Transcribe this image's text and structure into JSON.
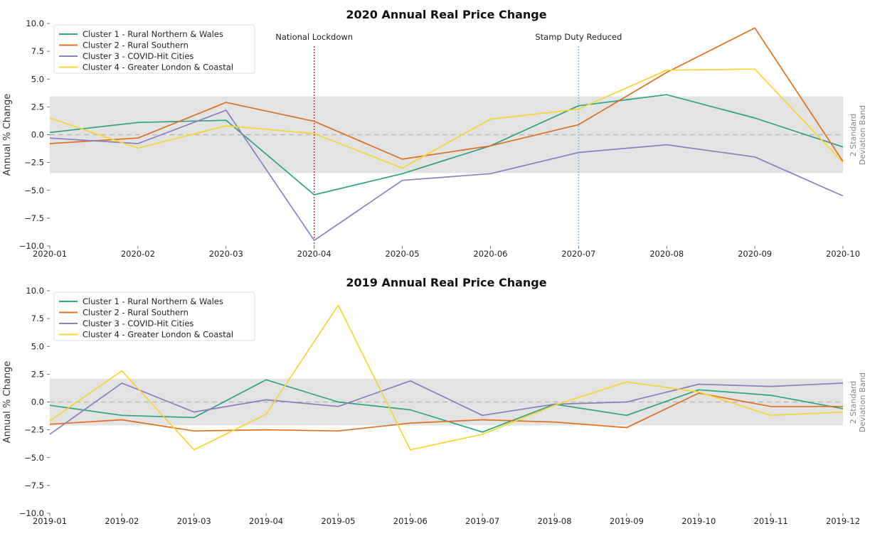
{
  "chart_data": [
    {
      "type": "line",
      "title": "2020 Annual Real Price Change",
      "ylabel": "Annual % Change",
      "band_label_line1": "2 Standard",
      "band_label_line2": "Deviation Band",
      "x": [
        "2020-01",
        "2020-02",
        "2020-03",
        "2020-04",
        "2020-05",
        "2020-06",
        "2020-07",
        "2020-08",
        "2020-09",
        "2020-10"
      ],
      "ylim": [
        -10,
        10
      ],
      "yticks": [
        "−10.0",
        "−7.5",
        "−5.0",
        "−2.5",
        "0.0",
        "2.5",
        "5.0",
        "7.5",
        "10.0"
      ],
      "yticks_values": [
        -10,
        -7.5,
        -5,
        -2.5,
        0,
        2.5,
        5,
        7.5,
        10
      ],
      "band": [
        -3.45,
        3.45
      ],
      "zero_line": 0,
      "grid": false,
      "legend_position": "top-left",
      "series": [
        {
          "name": "Cluster 1 - Rural Northern & Wales",
          "color": "#2ca585",
          "values": [
            0.2,
            1.1,
            1.3,
            -5.4,
            -3.5,
            -1.0,
            2.6,
            3.6,
            1.5,
            -1.1
          ]
        },
        {
          "name": "Cluster 2 - Rural Southern",
          "color": "#e0701f",
          "values": [
            -0.8,
            -0.3,
            2.9,
            1.2,
            -2.2,
            -1.0,
            0.9,
            5.6,
            9.6,
            -2.4
          ]
        },
        {
          "name": "Cluster 3 - COVID-Hit Cities",
          "color": "#8a7fc0",
          "values": [
            -0.3,
            -0.8,
            2.2,
            -9.5,
            -4.1,
            -3.5,
            -1.6,
            -0.9,
            -2.0,
            -5.5
          ]
        },
        {
          "name": "Cluster 4 - Greater London & Coastal",
          "color": "#f7d430",
          "values": [
            1.5,
            -1.2,
            0.8,
            0.1,
            -3.0,
            1.4,
            2.3,
            5.8,
            5.9,
            -2.5
          ]
        }
      ],
      "events": [
        {
          "label": "National Lockdown",
          "x": "2020-04",
          "color": "#e0342f"
        },
        {
          "label": "Stamp Duty Reduced",
          "x": "2020-07",
          "color": "#6ec9ea"
        }
      ]
    },
    {
      "type": "line",
      "title": "2019 Annual Real Price Change",
      "ylabel": "Annual % Change",
      "band_label_line1": "2 Standard",
      "band_label_line2": "Deviation Band",
      "x": [
        "2019-01",
        "2019-02",
        "2019-03",
        "2019-04",
        "2019-05",
        "2019-06",
        "2019-07",
        "2019-08",
        "2019-09",
        "2019-10",
        "2019-11",
        "2019-12"
      ],
      "ylim": [
        -10,
        10
      ],
      "yticks": [
        "−10.0",
        "−7.5",
        "−5.0",
        "−2.5",
        "0.0",
        "2.5",
        "5.0",
        "7.5",
        "10.0"
      ],
      "yticks_values": [
        -10,
        -7.5,
        -5,
        -2.5,
        0,
        2.5,
        5,
        7.5,
        10
      ],
      "band": [
        -2.1,
        2.1
      ],
      "zero_line": 0,
      "grid": false,
      "legend_position": "top-left",
      "series": [
        {
          "name": "Cluster 1 - Rural Northern & Wales",
          "color": "#2ca585",
          "values": [
            -0.3,
            -1.2,
            -1.4,
            2.0,
            0.0,
            -0.7,
            -2.7,
            -0.2,
            -1.2,
            1.1,
            0.6,
            -0.6
          ]
        },
        {
          "name": "Cluster 2 - Rural Southern",
          "color": "#e0701f",
          "values": [
            -2.0,
            -1.6,
            -2.6,
            -2.5,
            -2.6,
            -1.9,
            -1.6,
            -1.8,
            -2.3,
            0.8,
            -0.4,
            -0.4
          ]
        },
        {
          "name": "Cluster 3 - COVID-Hit Cities",
          "color": "#8a7fc0",
          "values": [
            -2.9,
            1.7,
            -0.9,
            0.2,
            -0.4,
            1.9,
            -1.2,
            -0.2,
            0.0,
            1.6,
            1.4,
            1.7
          ]
        },
        {
          "name": "Cluster 4 - Greater London & Coastal",
          "color": "#f7d430",
          "values": [
            -1.7,
            2.8,
            -4.3,
            -1.1,
            8.7,
            -4.3,
            -2.9,
            -0.3,
            1.8,
            0.9,
            -1.2,
            -0.9
          ]
        }
      ],
      "events": []
    }
  ]
}
